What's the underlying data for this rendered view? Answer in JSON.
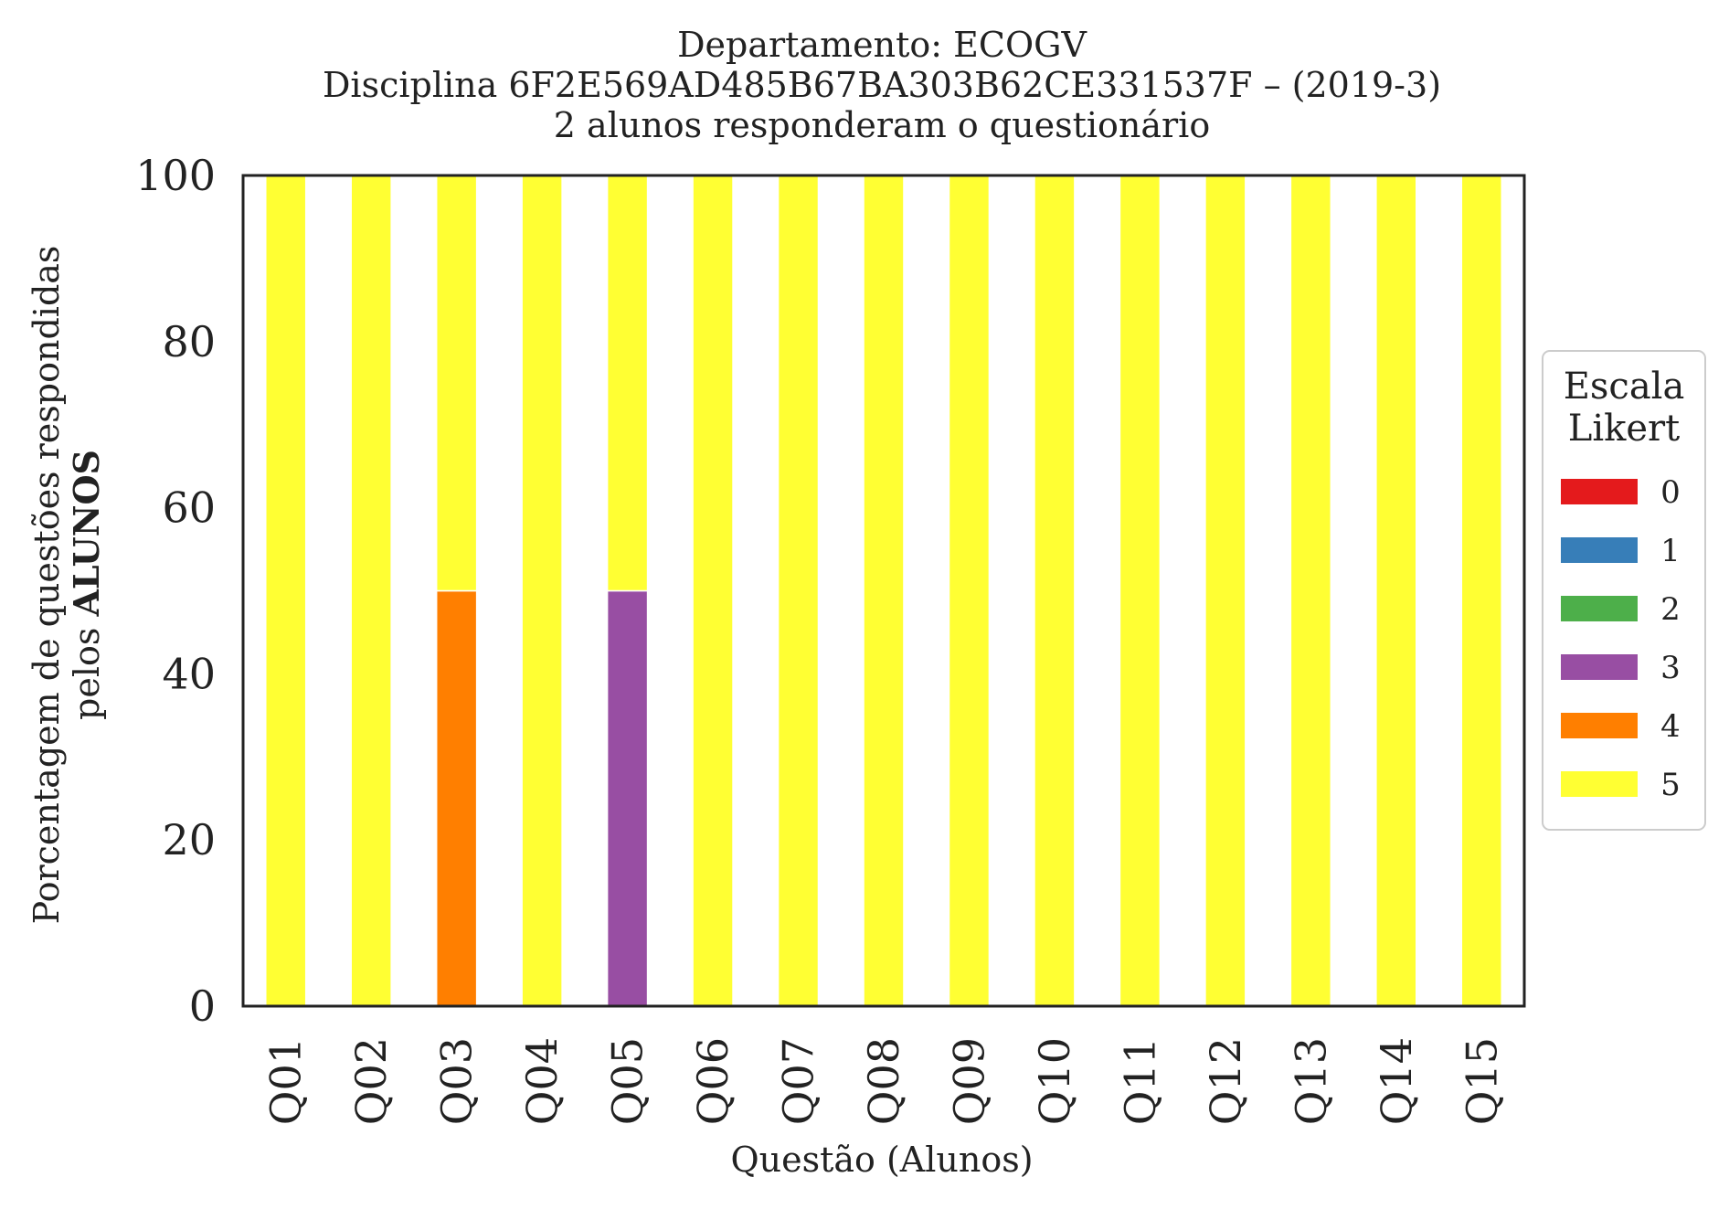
{
  "chart_data": {
    "type": "bar",
    "stacked": true,
    "title_lines": [
      "Departamento: ECOGV",
      "Disciplina 6F2E569AD485B67BA303B62CE331537F – (2019-3)",
      "2 alunos responderam o questionário"
    ],
    "xlabel": "Questão (Alunos)",
    "ylabel_line1": "Porcentagem de questões respondidas",
    "ylabel_line2_prefix": "pelos ",
    "ylabel_line2_bold": "ALUNOS",
    "ylim": [
      0,
      100
    ],
    "yticks": [
      "0",
      "20",
      "40",
      "60",
      "80",
      "100"
    ],
    "categories": [
      "Q01",
      "Q02",
      "Q03",
      "Q04",
      "Q05",
      "Q06",
      "Q07",
      "Q08",
      "Q09",
      "Q10",
      "Q11",
      "Q12",
      "Q13",
      "Q14",
      "Q15"
    ],
    "series": [
      {
        "name": "0",
        "color": "#e41a1c",
        "values": [
          0,
          0,
          0,
          0,
          0,
          0,
          0,
          0,
          0,
          0,
          0,
          0,
          0,
          0,
          0
        ]
      },
      {
        "name": "1",
        "color": "#377eb8",
        "values": [
          0,
          0,
          0,
          0,
          0,
          0,
          0,
          0,
          0,
          0,
          0,
          0,
          0,
          0,
          0
        ]
      },
      {
        "name": "2",
        "color": "#4daf4a",
        "values": [
          0,
          0,
          0,
          0,
          0,
          0,
          0,
          0,
          0,
          0,
          0,
          0,
          0,
          0,
          0
        ]
      },
      {
        "name": "3",
        "color": "#984ea3",
        "values": [
          0,
          0,
          0,
          0,
          50,
          0,
          0,
          0,
          0,
          0,
          0,
          0,
          0,
          0,
          0
        ]
      },
      {
        "name": "4",
        "color": "#ff7f00",
        "values": [
          0,
          0,
          50,
          0,
          0,
          0,
          0,
          0,
          0,
          0,
          0,
          0,
          0,
          0,
          0
        ]
      },
      {
        "name": "5",
        "color": "#ffff33",
        "values": [
          100,
          100,
          50,
          100,
          50,
          100,
          100,
          100,
          100,
          100,
          100,
          100,
          100,
          100,
          100
        ]
      }
    ],
    "legend": {
      "title_lines": [
        "Escala",
        "Likert"
      ],
      "placement": "center-right, outside plot"
    },
    "grid": false
  }
}
